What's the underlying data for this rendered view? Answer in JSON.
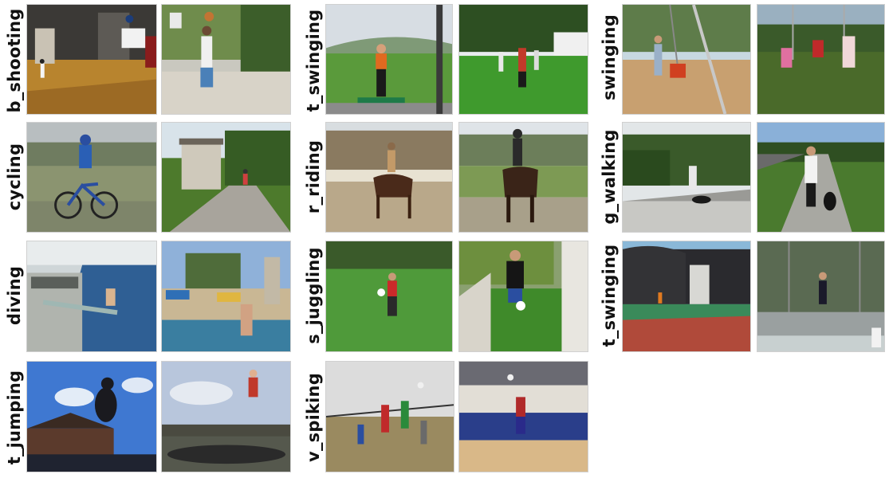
{
  "figure": {
    "labels": {
      "b_shooting": "b_shooting",
      "cycling": "cycling",
      "diving": "diving",
      "t_jumping": "t_jumping",
      "t_swinging_1": "t_swinging",
      "r_riding": "r_riding",
      "s_juggling": "s_juggling",
      "v_spiking": "v_spiking",
      "swinging": "swinging",
      "g_walking": "g_walking",
      "t_swinging_2": "t_swinging"
    }
  }
}
